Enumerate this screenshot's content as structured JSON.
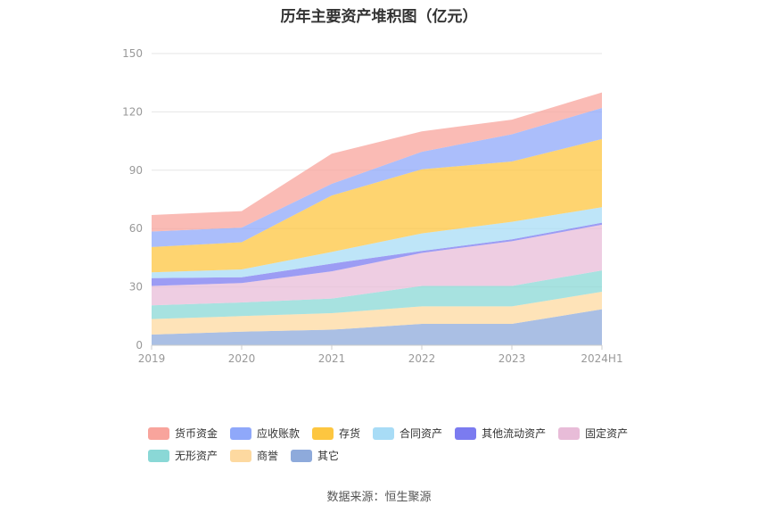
{
  "chart_data": {
    "type": "area",
    "stacked": true,
    "title": "历年主要资产堆积图（亿元）",
    "xlabel": "",
    "ylabel": "",
    "ylim": [
      0,
      150
    ],
    "yticks": [
      0,
      30,
      60,
      90,
      120,
      150
    ],
    "grid": true,
    "legend_position": "bottom",
    "categories": [
      "2019",
      "2020",
      "2021",
      "2022",
      "2023",
      "2024H1"
    ],
    "series": [
      {
        "name": "其它",
        "color": "#8eaadb",
        "values": [
          5.5,
          7,
          8,
          11,
          11,
          18.5
        ]
      },
      {
        "name": "商誉",
        "color": "#fdd9a0",
        "values": [
          8,
          8,
          8.5,
          9,
          9,
          9
        ]
      },
      {
        "name": "无形资产",
        "color": "#8ad8d6",
        "values": [
          7,
          7,
          7.5,
          10.5,
          10.5,
          11
        ]
      },
      {
        "name": "固定资产",
        "color": "#e8bcd8",
        "values": [
          10,
          10,
          14,
          17,
          23,
          23.5
        ]
      },
      {
        "name": "其他流动资产",
        "color": "#7b7bf0",
        "values": [
          4,
          3,
          4,
          1,
          1,
          1
        ]
      },
      {
        "name": "合同资产",
        "color": "#a8dcf6",
        "values": [
          3,
          4,
          6,
          9,
          9,
          8
        ]
      },
      {
        "name": "存货",
        "color": "#fdc640",
        "values": [
          13,
          14,
          29,
          33,
          31,
          35
        ]
      },
      {
        "name": "应收账款",
        "color": "#8fa8fa",
        "values": [
          8,
          7.5,
          6,
          9,
          14,
          16
        ]
      },
      {
        "name": "货币资金",
        "color": "#f8a49c",
        "values": [
          8.5,
          8.5,
          15.5,
          10.5,
          7.5,
          8
        ]
      }
    ]
  },
  "legend": [
    {
      "label": "货币资金",
      "color": "#f8a49c"
    },
    {
      "label": "应收账款",
      "color": "#8fa8fa"
    },
    {
      "label": "存货",
      "color": "#fdc640"
    },
    {
      "label": "合同资产",
      "color": "#a8dcf6"
    },
    {
      "label": "其他流动资产",
      "color": "#7b7bf0"
    },
    {
      "label": "固定资产",
      "color": "#e8bcd8"
    },
    {
      "label": "无形资产",
      "color": "#8ad8d6"
    },
    {
      "label": "商誉",
      "color": "#fdd9a0"
    },
    {
      "label": "其它",
      "color": "#8eaadb"
    }
  ],
  "source": "数据来源：恒生聚源"
}
